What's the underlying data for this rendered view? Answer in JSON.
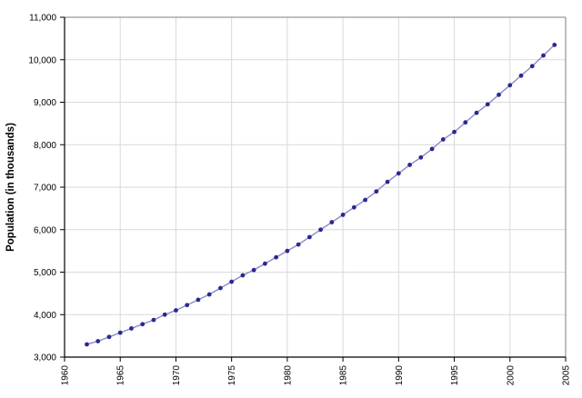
{
  "chart_data": {
    "type": "line",
    "title": "",
    "xlabel": "",
    "ylabel": "Population (in thousands)",
    "legend_position": "none",
    "grid": true,
    "x": [
      1962,
      1963,
      1964,
      1965,
      1966,
      1967,
      1968,
      1969,
      1970,
      1971,
      1972,
      1973,
      1974,
      1975,
      1976,
      1977,
      1978,
      1979,
      1980,
      1981,
      1982,
      1983,
      1984,
      1985,
      1986,
      1987,
      1988,
      1989,
      1990,
      1991,
      1992,
      1993,
      1994,
      1995,
      1996,
      1997,
      1998,
      1999,
      2000,
      2001,
      2002,
      2003,
      2004
    ],
    "values": [
      3300,
      3375,
      3475,
      3575,
      3675,
      3775,
      3875,
      4000,
      4100,
      4225,
      4350,
      4475,
      4625,
      4775,
      4925,
      5050,
      5200,
      5350,
      5500,
      5650,
      5825,
      6000,
      6175,
      6350,
      6525,
      6700,
      6900,
      7125,
      7325,
      7525,
      7700,
      7900,
      8125,
      8300,
      8525,
      8750,
      8950,
      9175,
      9400,
      9625,
      9850,
      10100,
      10350
    ],
    "xlim": [
      1960,
      2005
    ],
    "ylim": [
      3000,
      11000
    ],
    "xticks": [
      1960,
      1965,
      1970,
      1975,
      1980,
      1985,
      1990,
      1995,
      2000,
      2005
    ],
    "yticks": [
      3000,
      4000,
      5000,
      6000,
      7000,
      8000,
      9000,
      10000,
      11000
    ],
    "colors": {
      "line": "#8a8acd",
      "marker": "#29298f",
      "grid": "#d9d9d9",
      "axis": "#000000",
      "frame": "#7f7f7f",
      "tick_label": "#000000"
    }
  }
}
